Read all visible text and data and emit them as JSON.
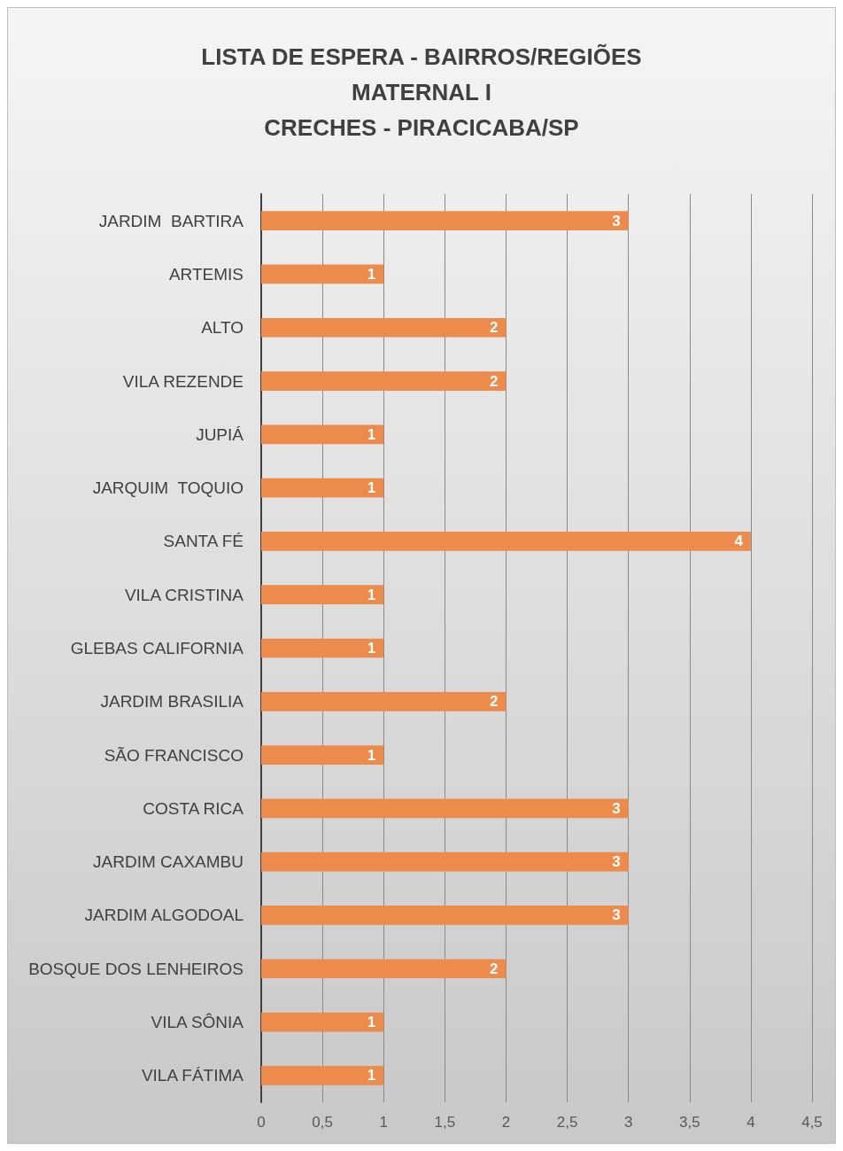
{
  "chart_data": {
    "type": "bar",
    "orientation": "horizontal",
    "title": "LISTA DE ESPERA - BAIRROS/REGIÕES\nMATERNAL I\nCRECHES - PIRACICABA/SP",
    "categories": [
      "JARDIM  BARTIRA",
      "ARTEMIS",
      "ALTO",
      "VILA REZENDE",
      "JUPIÁ",
      "JARQUIM  TOQUIO",
      "SANTA FÉ",
      "VILA CRISTINA",
      "GLEBAS CALIFORNIA",
      "JARDIM BRASILIA",
      "SÃO FRANCISCO",
      "COSTA RICA",
      "JARDIM CAXAMBU",
      "JARDIM ALGODOAL",
      "BOSQUE DOS LENHEIROS",
      "VILA SÔNIA",
      "VILA FÁTIMA"
    ],
    "values": [
      3,
      1,
      2,
      2,
      1,
      1,
      4,
      1,
      1,
      2,
      1,
      3,
      3,
      3,
      2,
      1,
      1
    ],
    "color": "#ed8b4c",
    "xlim": [
      0,
      4.5
    ],
    "xticks": [
      0,
      {
        "value": 0.5,
        "label": "0,5"
      },
      1,
      {
        "value": 1.5,
        "label": "1,5"
      },
      2,
      {
        "value": 2.5,
        "label": "2,5"
      },
      3,
      {
        "value": 3.5,
        "label": "3,5"
      },
      4,
      {
        "value": 4.5,
        "label": "4,5"
      }
    ],
    "grid": "x",
    "data_labels": true
  }
}
